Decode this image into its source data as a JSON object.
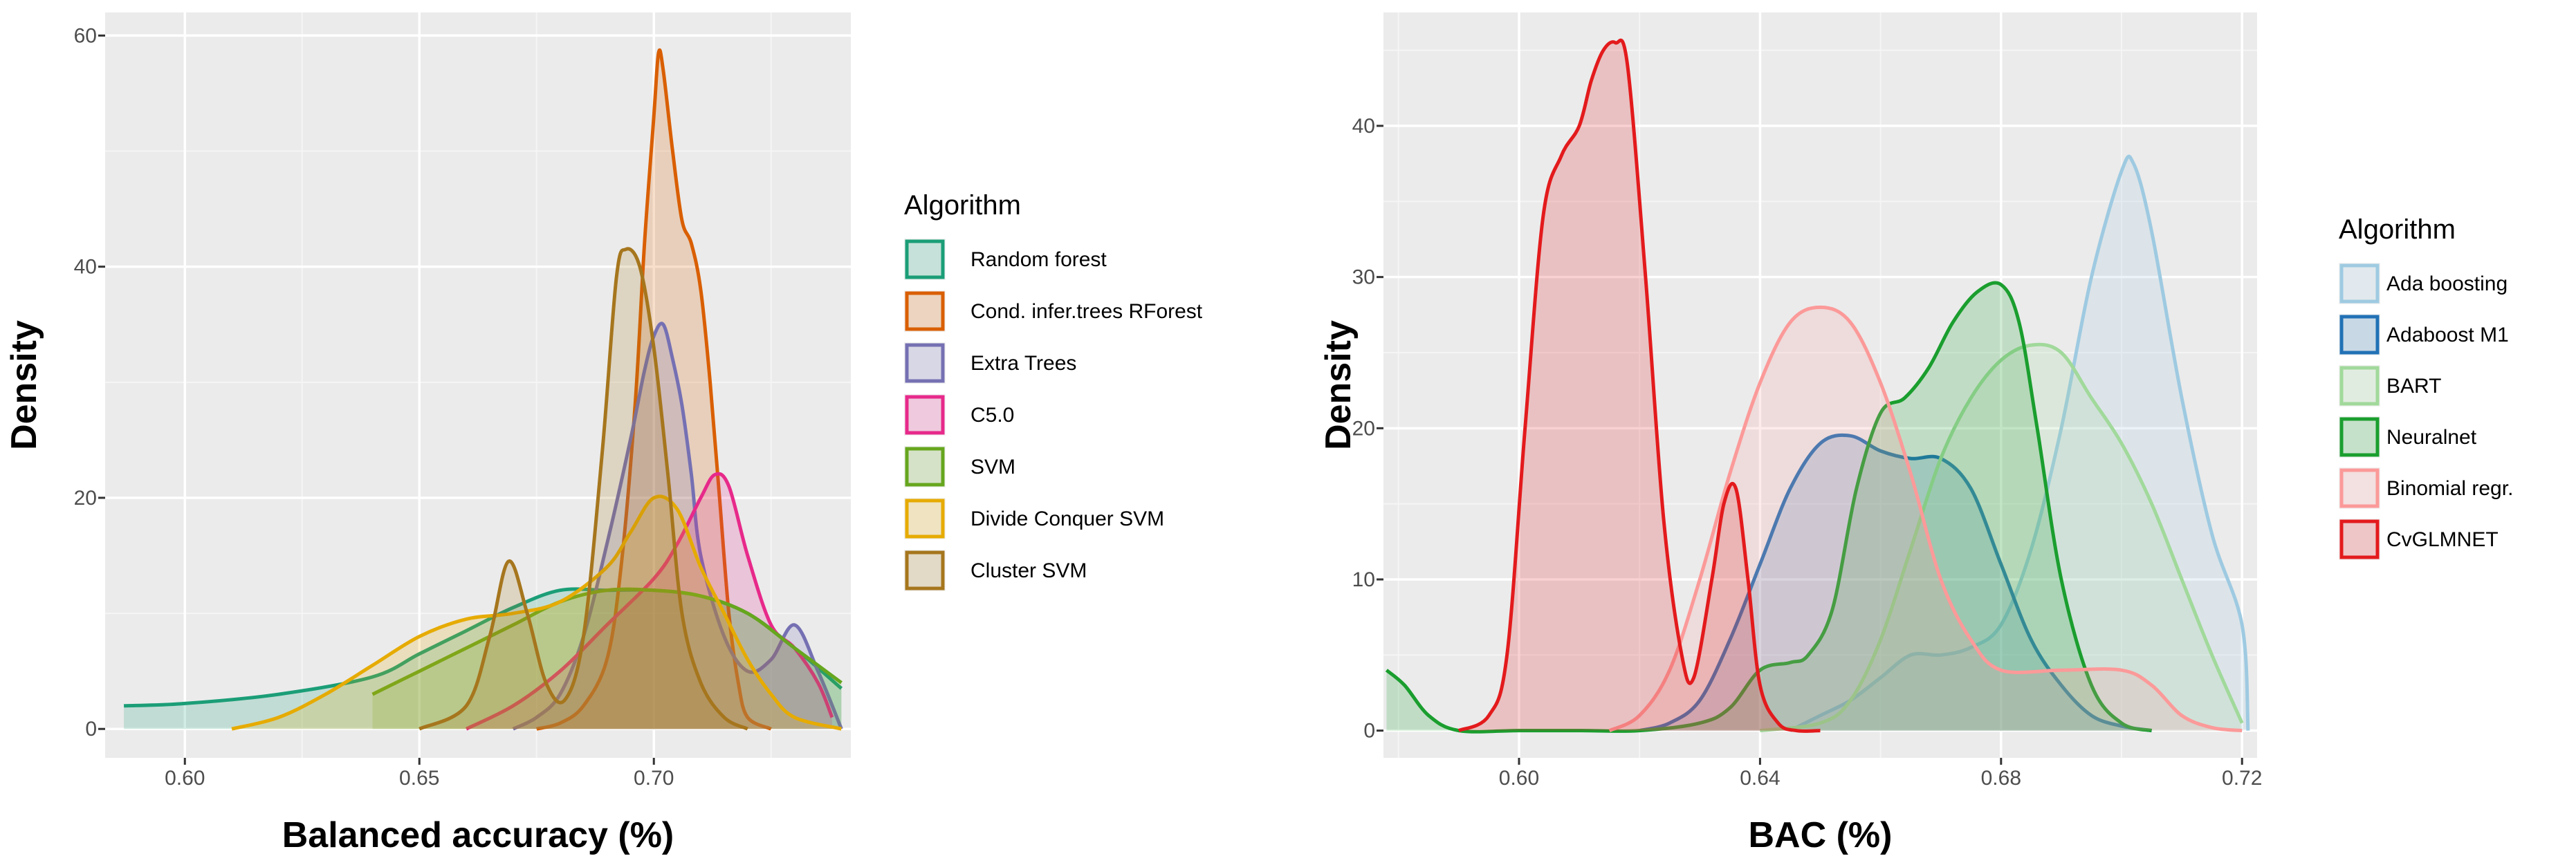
{
  "chart_data": [
    {
      "type": "area",
      "title": "",
      "xlabel": "Balanced accuracy (%)",
      "ylabel": "Density",
      "xlim": [
        0.583,
        0.742
      ],
      "ylim": [
        -2.5,
        62
      ],
      "xticks": [
        "0.60",
        "0.65",
        "0.70"
      ],
      "xtick_values": [
        0.6,
        0.65,
        0.7
      ],
      "yticks": [
        "0",
        "20",
        "40",
        "60"
      ],
      "ytick_values": [
        0,
        20,
        40,
        60
      ],
      "grid": true,
      "legend_title": "Algorithm",
      "legend_position": "right",
      "series": [
        {
          "name": "Random forest",
          "color": "#1b9e77",
          "x": [
            0.587,
            0.6,
            0.62,
            0.64,
            0.65,
            0.66,
            0.67,
            0.68,
            0.69,
            0.7,
            0.71,
            0.72,
            0.73,
            0.74
          ],
          "y": [
            2,
            2.2,
            3,
            4.5,
            6.5,
            8.5,
            10.5,
            12,
            12,
            12,
            11.5,
            10,
            7,
            3.5
          ]
        },
        {
          "name": "Cond. infer.trees RForest",
          "color": "#d95f02",
          "x": [
            0.675,
            0.68,
            0.685,
            0.69,
            0.693,
            0.696,
            0.698,
            0.7,
            0.701,
            0.702,
            0.704,
            0.706,
            0.708,
            0.71,
            0.712,
            0.714,
            0.716,
            0.718,
            0.72,
            0.725
          ],
          "y": [
            0,
            0.5,
            2,
            6,
            14,
            28,
            42,
            53,
            58.5,
            57,
            50,
            44,
            42,
            38,
            30,
            20,
            10,
            4,
            1,
            0
          ]
        },
        {
          "name": "Extra Trees",
          "color": "#7570b3",
          "x": [
            0.67,
            0.675,
            0.68,
            0.685,
            0.69,
            0.695,
            0.698,
            0.7,
            0.702,
            0.704,
            0.706,
            0.708,
            0.71,
            0.715,
            0.72,
            0.725,
            0.73,
            0.735,
            0.74
          ],
          "y": [
            0,
            1,
            3,
            8,
            16,
            25,
            31,
            34,
            35,
            32,
            28,
            22,
            15,
            8,
            5,
            6,
            9,
            5,
            0
          ]
        },
        {
          "name": "C5.0",
          "color": "#e7298a",
          "x": [
            0.66,
            0.67,
            0.68,
            0.69,
            0.7,
            0.705,
            0.71,
            0.713,
            0.716,
            0.72,
            0.725,
            0.73,
            0.735,
            0.738
          ],
          "y": [
            0,
            2,
            5,
            9,
            13,
            16,
            20,
            22,
            21,
            15,
            9,
            7,
            4,
            1
          ]
        },
        {
          "name": "SVM",
          "color": "#66a61e",
          "x": [
            0.64,
            0.65,
            0.66,
            0.67,
            0.68,
            0.69,
            0.7,
            0.71,
            0.72,
            0.73,
            0.74
          ],
          "y": [
            3,
            5,
            7,
            9,
            11,
            12,
            12,
            11.5,
            10,
            7,
            4
          ]
        },
        {
          "name": "Divide Conquer SVM",
          "color": "#e6ab02",
          "x": [
            0.61,
            0.62,
            0.63,
            0.64,
            0.65,
            0.66,
            0.67,
            0.68,
            0.69,
            0.695,
            0.7,
            0.705,
            0.71,
            0.715,
            0.72,
            0.725,
            0.73,
            0.74
          ],
          "y": [
            0,
            1,
            3,
            5.5,
            8,
            9.5,
            10,
            11,
            14,
            17,
            20,
            19,
            14,
            10,
            6,
            3,
            1,
            0
          ]
        },
        {
          "name": "Cluster SVM",
          "color": "#a6761d",
          "x": [
            0.65,
            0.66,
            0.665,
            0.669,
            0.673,
            0.677,
            0.681,
            0.685,
            0.689,
            0.692,
            0.694,
            0.697,
            0.7,
            0.703,
            0.706,
            0.71,
            0.715,
            0.72
          ],
          "y": [
            0,
            2,
            8,
            14.5,
            10,
            4,
            2.5,
            8,
            24,
            39,
            41.5,
            40,
            33,
            22,
            10,
            4,
            1,
            0
          ]
        }
      ]
    },
    {
      "type": "area",
      "title": "",
      "xlabel": "BAC (%)",
      "ylabel": "Density",
      "xlim": [
        0.5775,
        0.7225
      ],
      "ylim": [
        -1.8,
        47.5
      ],
      "xticks": [
        "0.60",
        "0.64",
        "0.68",
        "0.72"
      ],
      "xtick_values": [
        0.6,
        0.64,
        0.68,
        0.72
      ],
      "yticks": [
        "0",
        "10",
        "20",
        "30",
        "40"
      ],
      "ytick_values": [
        0,
        10,
        20,
        30,
        40
      ],
      "grid": true,
      "legend_title": "Algorithm",
      "legend_position": "right",
      "series": [
        {
          "name": "Ada boosting",
          "color": "#9ecae1",
          "x": [
            0.645,
            0.65,
            0.655,
            0.66,
            0.665,
            0.67,
            0.675,
            0.68,
            0.685,
            0.69,
            0.695,
            0.7,
            0.702,
            0.705,
            0.71,
            0.715,
            0.72,
            0.721
          ],
          "y": [
            0,
            1,
            2,
            3.5,
            5,
            5,
            5.5,
            7,
            12,
            20,
            30,
            37,
            37.5,
            33,
            22,
            13,
            7,
            0
          ]
        },
        {
          "name": "Adaboost M1",
          "color": "#2171b5",
          "x": [
            0.62,
            0.625,
            0.63,
            0.635,
            0.64,
            0.645,
            0.65,
            0.655,
            0.66,
            0.665,
            0.67,
            0.675,
            0.68,
            0.685,
            0.69,
            0.695,
            0.7,
            0.705
          ],
          "y": [
            0,
            0.5,
            2,
            6,
            11,
            16,
            19,
            19.5,
            18.5,
            18,
            18,
            16,
            11,
            6,
            3,
            1,
            0.3,
            0
          ]
        },
        {
          "name": "BART",
          "color": "#a1d99b",
          "x": [
            0.64,
            0.65,
            0.655,
            0.66,
            0.665,
            0.67,
            0.675,
            0.68,
            0.685,
            0.69,
            0.695,
            0.7,
            0.705,
            0.71,
            0.715,
            0.72
          ],
          "y": [
            0,
            0.5,
            2,
            6,
            12,
            18,
            22,
            24.5,
            25.5,
            25,
            22,
            19,
            15,
            10,
            5,
            0.5
          ]
        },
        {
          "name": "Neuralnet",
          "color": "#1a9e2e",
          "x": [
            0.578,
            0.581,
            0.585,
            0.59,
            0.6,
            0.61,
            0.62,
            0.63,
            0.635,
            0.64,
            0.645,
            0.648,
            0.652,
            0.656,
            0.66,
            0.664,
            0.668,
            0.672,
            0.676,
            0.68,
            0.683,
            0.686,
            0.69,
            0.695,
            0.7,
            0.705
          ],
          "y": [
            4,
            3,
            1,
            0,
            0,
            0,
            0,
            0.5,
            1.5,
            4,
            4.5,
            5,
            8,
            16,
            21,
            22,
            24,
            27,
            29,
            29.5,
            27,
            20,
            10,
            3,
            0.5,
            0
          ]
        },
        {
          "name": "Binomial regr.",
          "color": "#fb9a99",
          "x": [
            0.615,
            0.62,
            0.625,
            0.63,
            0.635,
            0.64,
            0.645,
            0.65,
            0.655,
            0.66,
            0.665,
            0.67,
            0.675,
            0.68,
            0.69,
            0.7,
            0.705,
            0.71,
            0.715,
            0.72
          ],
          "y": [
            0,
            1,
            4,
            10,
            17,
            23,
            27,
            28,
            27,
            23,
            17,
            10,
            6,
            4,
            4,
            4,
            3,
            1,
            0.2,
            0
          ]
        },
        {
          "name": "CvGLMNET",
          "color": "#e31a1c",
          "x": [
            0.59,
            0.595,
            0.598,
            0.601,
            0.604,
            0.607,
            0.61,
            0.612,
            0.614,
            0.616,
            0.618,
            0.621,
            0.624,
            0.627,
            0.629,
            0.632,
            0.634,
            0.636,
            0.638,
            0.64,
            0.643,
            0.646,
            0.65
          ],
          "y": [
            0,
            1,
            5,
            20,
            34,
            38,
            40,
            43,
            45,
            45.5,
            44,
            30,
            14,
            5,
            3.5,
            10,
            15,
            16,
            10,
            3,
            0.5,
            0,
            0
          ]
        }
      ]
    }
  ]
}
